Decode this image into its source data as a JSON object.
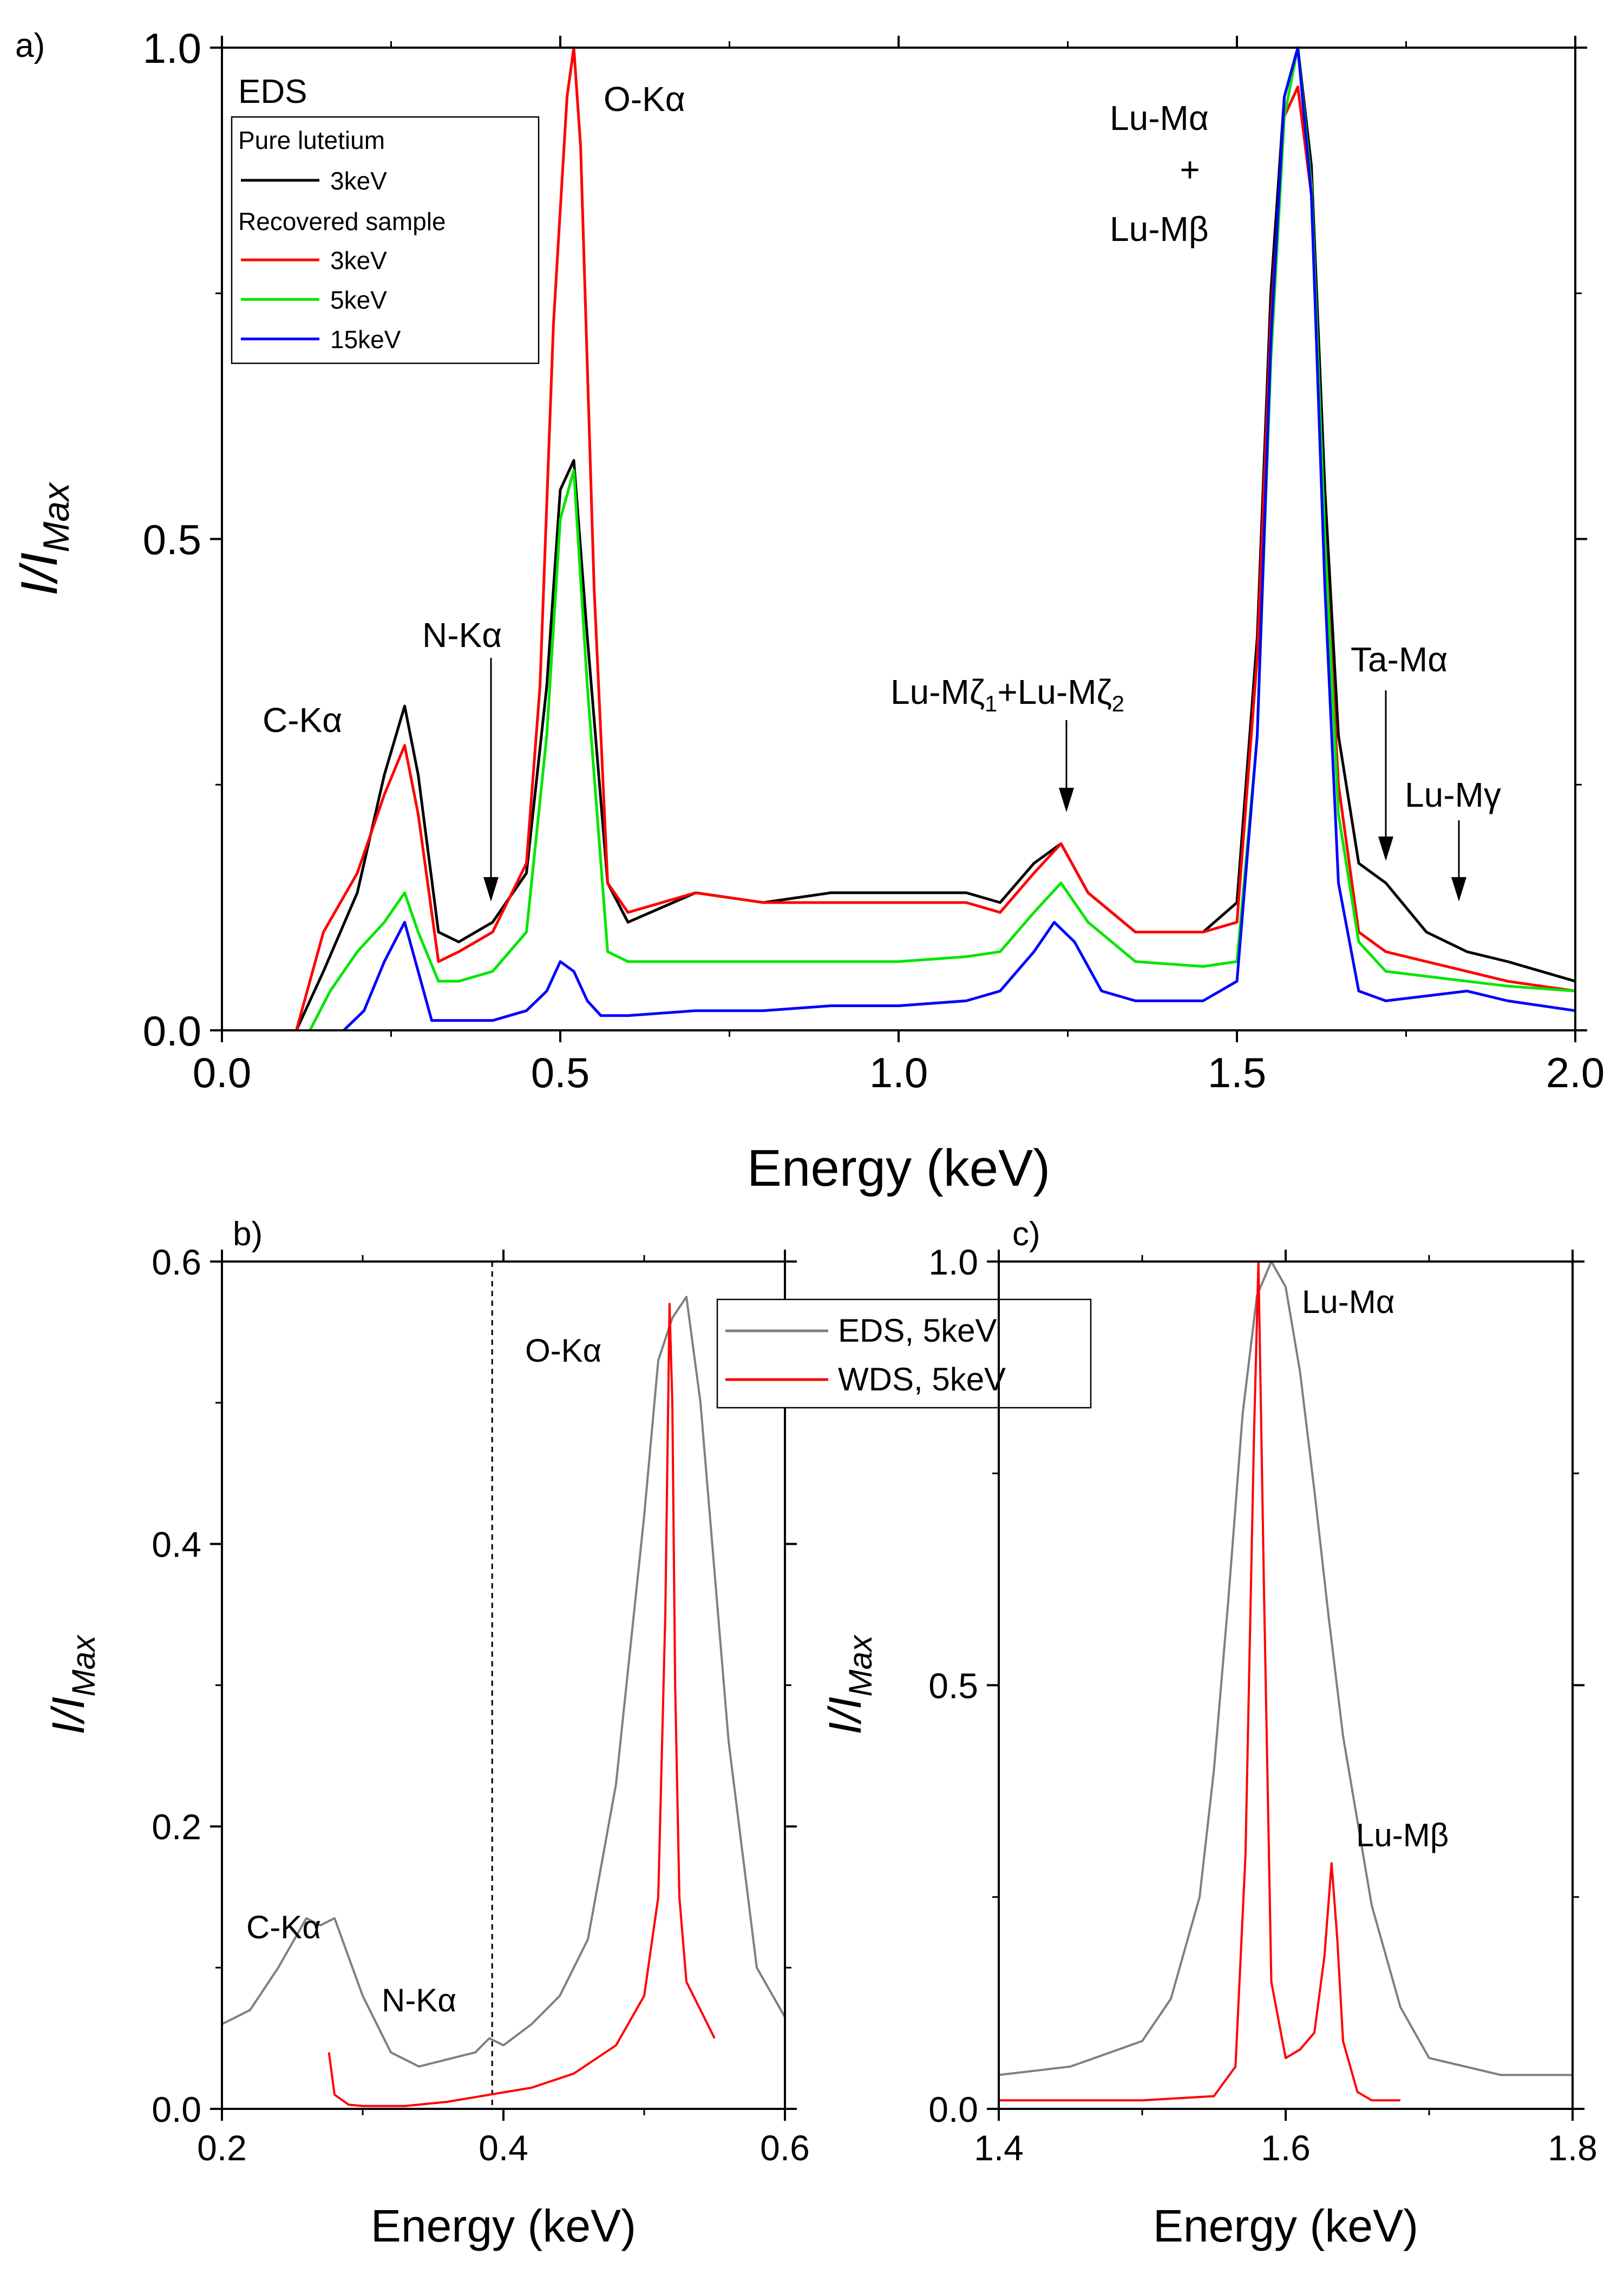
{
  "chart_data": [
    {
      "type": "line",
      "panel": "a)",
      "xlabel": "Energy (keV)",
      "ylabel": "I/I",
      "ylabel_sub": "Max",
      "xlim": [
        0.0,
        2.0
      ],
      "ylim": [
        0.0,
        1.0
      ],
      "xticks": [
        "0.0",
        "0.5",
        "1.0",
        "1.5",
        "2.0"
      ],
      "yticks": [
        "0.0",
        "0.5",
        "1.0"
      ],
      "legend": {
        "title": "EDS",
        "group1": "Pure lutetium",
        "group2": "Recovered sample",
        "entries": [
          "3keV",
          "3keV",
          "5keV",
          "15keV"
        ]
      },
      "annotations": {
        "ok": "O-Kα",
        "ck": "C-Kα",
        "nk": "N-Kα",
        "luma": "Lu-Mα",
        "plus": "+",
        "lumb": "Lu-Mβ",
        "luz": "Lu-Mζ",
        "sub1": "1",
        "plus2": "+",
        "luz2": "Lu-Mζ",
        "sub2": "2",
        "tama": "Ta-Mα",
        "lumg": "Lu-Mγ"
      },
      "series": [
        {
          "name": "Pure lutetium 3keV",
          "color": "#000000",
          "x": [
            0.11,
            0.15,
            0.2,
            0.24,
            0.27,
            0.29,
            0.32,
            0.35,
            0.4,
            0.45,
            0.48,
            0.5,
            0.52,
            0.54,
            0.57,
            0.6,
            0.7,
            0.8,
            0.9,
            1.0,
            1.1,
            1.15,
            1.2,
            1.24,
            1.28,
            1.35,
            1.45,
            1.5,
            1.53,
            1.55,
            1.57,
            1.59,
            1.61,
            1.63,
            1.65,
            1.68,
            1.72,
            1.78,
            1.84,
            1.9,
            2.0
          ],
          "y": [
            0.0,
            0.06,
            0.14,
            0.26,
            0.33,
            0.26,
            0.1,
            0.09,
            0.11,
            0.16,
            0.35,
            0.55,
            0.58,
            0.4,
            0.15,
            0.11,
            0.14,
            0.13,
            0.14,
            0.14,
            0.14,
            0.13,
            0.17,
            0.19,
            0.14,
            0.1,
            0.1,
            0.13,
            0.4,
            0.75,
            0.95,
            1.0,
            0.88,
            0.55,
            0.3,
            0.17,
            0.15,
            0.1,
            0.08,
            0.07,
            0.05
          ]
        },
        {
          "name": "Recovered sample 3keV",
          "color": "#ff0000",
          "x": [
            0.11,
            0.15,
            0.2,
            0.24,
            0.27,
            0.29,
            0.32,
            0.35,
            0.4,
            0.45,
            0.47,
            0.49,
            0.51,
            0.52,
            0.53,
            0.55,
            0.57,
            0.6,
            0.7,
            0.8,
            0.9,
            1.0,
            1.1,
            1.15,
            1.2,
            1.24,
            1.28,
            1.35,
            1.45,
            1.5,
            1.53,
            1.55,
            1.57,
            1.59,
            1.61,
            1.63,
            1.65,
            1.68,
            1.72,
            1.78,
            1.84,
            1.9,
            2.0
          ],
          "y": [
            0.0,
            0.1,
            0.16,
            0.24,
            0.29,
            0.22,
            0.07,
            0.08,
            0.1,
            0.17,
            0.35,
            0.72,
            0.95,
            1.0,
            0.9,
            0.45,
            0.15,
            0.12,
            0.14,
            0.13,
            0.13,
            0.13,
            0.13,
            0.12,
            0.16,
            0.19,
            0.14,
            0.1,
            0.1,
            0.11,
            0.38,
            0.72,
            0.93,
            0.96,
            0.85,
            0.5,
            0.25,
            0.1,
            0.08,
            0.07,
            0.06,
            0.05,
            0.04
          ]
        },
        {
          "name": "Recovered sample 5keV",
          "color": "#00e600",
          "x": [
            0.13,
            0.16,
            0.2,
            0.24,
            0.27,
            0.29,
            0.32,
            0.35,
            0.4,
            0.45,
            0.48,
            0.5,
            0.52,
            0.54,
            0.57,
            0.6,
            0.7,
            0.8,
            0.9,
            1.0,
            1.1,
            1.15,
            1.2,
            1.24,
            1.28,
            1.35,
            1.45,
            1.5,
            1.53,
            1.55,
            1.57,
            1.59,
            1.61,
            1.63,
            1.65,
            1.68,
            1.72,
            1.78,
            1.84,
            1.9,
            2.0
          ],
          "y": [
            0.0,
            0.04,
            0.08,
            0.11,
            0.14,
            0.1,
            0.05,
            0.05,
            0.06,
            0.1,
            0.3,
            0.52,
            0.57,
            0.35,
            0.08,
            0.07,
            0.07,
            0.07,
            0.07,
            0.07,
            0.075,
            0.08,
            0.12,
            0.15,
            0.11,
            0.07,
            0.065,
            0.07,
            0.3,
            0.68,
            0.93,
            1.0,
            0.86,
            0.5,
            0.22,
            0.09,
            0.06,
            0.055,
            0.05,
            0.045,
            0.04
          ]
        },
        {
          "name": "Recovered sample 15keV",
          "color": "#0000ff",
          "x": [
            0.18,
            0.21,
            0.24,
            0.27,
            0.29,
            0.31,
            0.35,
            0.4,
            0.45,
            0.48,
            0.5,
            0.52,
            0.54,
            0.56,
            0.6,
            0.7,
            0.8,
            0.9,
            1.0,
            1.1,
            1.15,
            1.2,
            1.23,
            1.26,
            1.3,
            1.35,
            1.45,
            1.5,
            1.53,
            1.55,
            1.57,
            1.59,
            1.61,
            1.63,
            1.65,
            1.68,
            1.72,
            1.78,
            1.84,
            1.9,
            2.0
          ],
          "y": [
            0.0,
            0.02,
            0.07,
            0.11,
            0.06,
            0.01,
            0.01,
            0.01,
            0.02,
            0.04,
            0.07,
            0.06,
            0.03,
            0.015,
            0.015,
            0.02,
            0.02,
            0.025,
            0.025,
            0.03,
            0.04,
            0.08,
            0.11,
            0.09,
            0.04,
            0.03,
            0.03,
            0.05,
            0.3,
            0.7,
            0.95,
            1.0,
            0.85,
            0.45,
            0.15,
            0.04,
            0.03,
            0.035,
            0.04,
            0.03,
            0.02
          ]
        }
      ]
    },
    {
      "type": "line",
      "panel": "b)",
      "xlabel": "Energy (keV)",
      "ylabel": "I/I",
      "ylabel_sub": "Max",
      "xlim": [
        0.2,
        0.6
      ],
      "ylim": [
        0.0,
        0.6
      ],
      "xticks": [
        "0.2",
        "0.4",
        "0.6"
      ],
      "yticks": [
        "0.0",
        "0.2",
        "0.4",
        "0.6"
      ],
      "dashed_x": 0.392,
      "annotations": {
        "ok": "O-Kα",
        "ck": "C-Kα",
        "nk": "N-Kα"
      },
      "series": [
        {
          "name": "EDS, 5keV",
          "color": "#7f7f7f",
          "x": [
            0.2,
            0.22,
            0.24,
            0.26,
            0.27,
            0.28,
            0.3,
            0.32,
            0.34,
            0.36,
            0.38,
            0.39,
            0.4,
            0.42,
            0.44,
            0.46,
            0.48,
            0.5,
            0.51,
            0.52,
            0.53,
            0.54,
            0.56,
            0.58,
            0.6
          ],
          "y": [
            0.06,
            0.07,
            0.1,
            0.135,
            0.13,
            0.135,
            0.08,
            0.04,
            0.03,
            0.035,
            0.04,
            0.05,
            0.045,
            0.06,
            0.08,
            0.12,
            0.23,
            0.42,
            0.53,
            0.56,
            0.575,
            0.5,
            0.26,
            0.1,
            0.065
          ]
        },
        {
          "name": "WDS, 5keV",
          "color": "#ff0000",
          "x": [
            0.276,
            0.28,
            0.29,
            0.3,
            0.33,
            0.36,
            0.39,
            0.42,
            0.45,
            0.48,
            0.5,
            0.51,
            0.515,
            0.518,
            0.52,
            0.522,
            0.525,
            0.53,
            0.54,
            0.55
          ],
          "y": [
            0.04,
            0.01,
            0.003,
            0.002,
            0.002,
            0.005,
            0.01,
            0.015,
            0.025,
            0.045,
            0.08,
            0.15,
            0.35,
            0.57,
            0.5,
            0.3,
            0.15,
            0.09,
            0.07,
            0.05
          ]
        }
      ],
      "legend_entries": [
        "EDS, 5keV",
        "WDS, 5keV"
      ]
    },
    {
      "type": "line",
      "panel": "c)",
      "xlabel": "Energy (keV)",
      "ylabel": "I/I",
      "ylabel_sub": "Max",
      "xlim": [
        1.4,
        1.8
      ],
      "ylim": [
        0.0,
        1.0
      ],
      "xticks": [
        "1.4",
        "1.6",
        "1.8"
      ],
      "yticks": [
        "0.0",
        "0.5",
        "1.0"
      ],
      "annotations": {
        "luma": "Lu-Mα",
        "lumb": "Lu-Mβ"
      },
      "series": [
        {
          "name": "EDS, 5keV",
          "color": "#7f7f7f",
          "x": [
            1.4,
            1.45,
            1.5,
            1.52,
            1.54,
            1.55,
            1.56,
            1.57,
            1.58,
            1.59,
            1.6,
            1.61,
            1.62,
            1.63,
            1.64,
            1.66,
            1.68,
            1.7,
            1.75,
            1.8
          ],
          "y": [
            0.04,
            0.05,
            0.08,
            0.13,
            0.25,
            0.4,
            0.6,
            0.82,
            0.96,
            1.0,
            0.97,
            0.87,
            0.73,
            0.58,
            0.44,
            0.24,
            0.12,
            0.06,
            0.04,
            0.04
          ]
        },
        {
          "name": "WDS, 5keV",
          "color": "#ff0000",
          "x": [
            1.4,
            1.5,
            1.55,
            1.565,
            1.572,
            1.578,
            1.581,
            1.585,
            1.59,
            1.6,
            1.61,
            1.62,
            1.627,
            1.632,
            1.636,
            1.64,
            1.65,
            1.66,
            1.68
          ],
          "y": [
            0.01,
            0.01,
            0.015,
            0.05,
            0.3,
            0.8,
            1.0,
            0.6,
            0.15,
            0.06,
            0.07,
            0.09,
            0.18,
            0.29,
            0.2,
            0.08,
            0.02,
            0.01,
            0.01
          ]
        }
      ]
    }
  ]
}
